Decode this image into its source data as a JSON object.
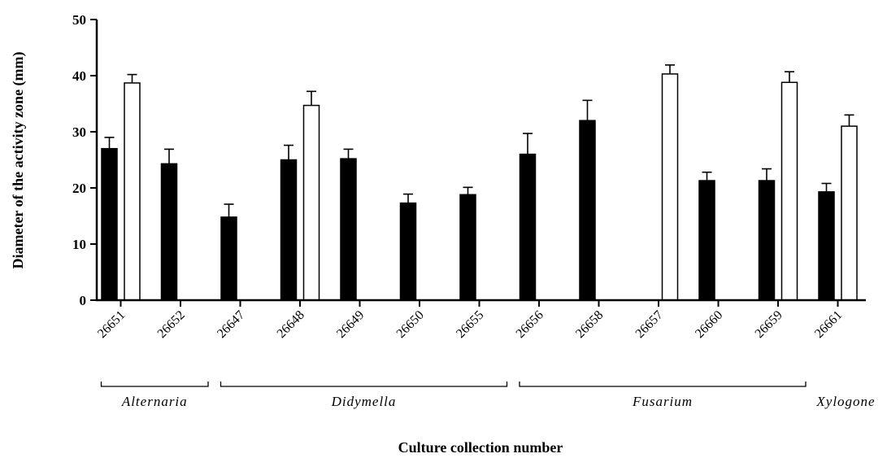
{
  "chart_data": {
    "type": "bar",
    "xlabel": "Culture collection number",
    "ylabel": "Diameter of the activity zone (mm)",
    "ylim": [
      0,
      50
    ],
    "yticks": [
      0,
      10,
      20,
      30,
      40,
      50
    ],
    "grid": false,
    "categories": [
      "26651",
      "26652",
      "26647",
      "26648",
      "26649",
      "26650",
      "26655",
      "26656",
      "26658",
      "26657",
      "26660",
      "26659",
      "26661"
    ],
    "series": [
      {
        "color": "#000000",
        "values": [
          27,
          24.3,
          14.8,
          25,
          25.2,
          17.3,
          18.8,
          26,
          32,
          null,
          21.3,
          21.3,
          19.3
        ],
        "errors": [
          2,
          2.6,
          2.3,
          2.6,
          1.7,
          1.6,
          1.3,
          3.7,
          3.6,
          null,
          1.5,
          2.1,
          1.5
        ]
      },
      {
        "color": "#ffffff",
        "values": [
          38.7,
          null,
          null,
          34.7,
          null,
          null,
          null,
          null,
          null,
          40.3,
          null,
          38.8,
          31
        ],
        "errors": [
          1.5,
          null,
          null,
          2.5,
          null,
          null,
          null,
          null,
          null,
          1.6,
          null,
          1.9,
          2
        ]
      }
    ],
    "groups": [
      {
        "label": "Alternaria",
        "from": 0,
        "to": 1
      },
      {
        "label": "Didymella",
        "from": 2,
        "to": 6
      },
      {
        "label": "Fusarium",
        "from": 7,
        "to": 11
      },
      {
        "label": "Xylogone",
        "from": 12,
        "to": 12
      }
    ]
  }
}
